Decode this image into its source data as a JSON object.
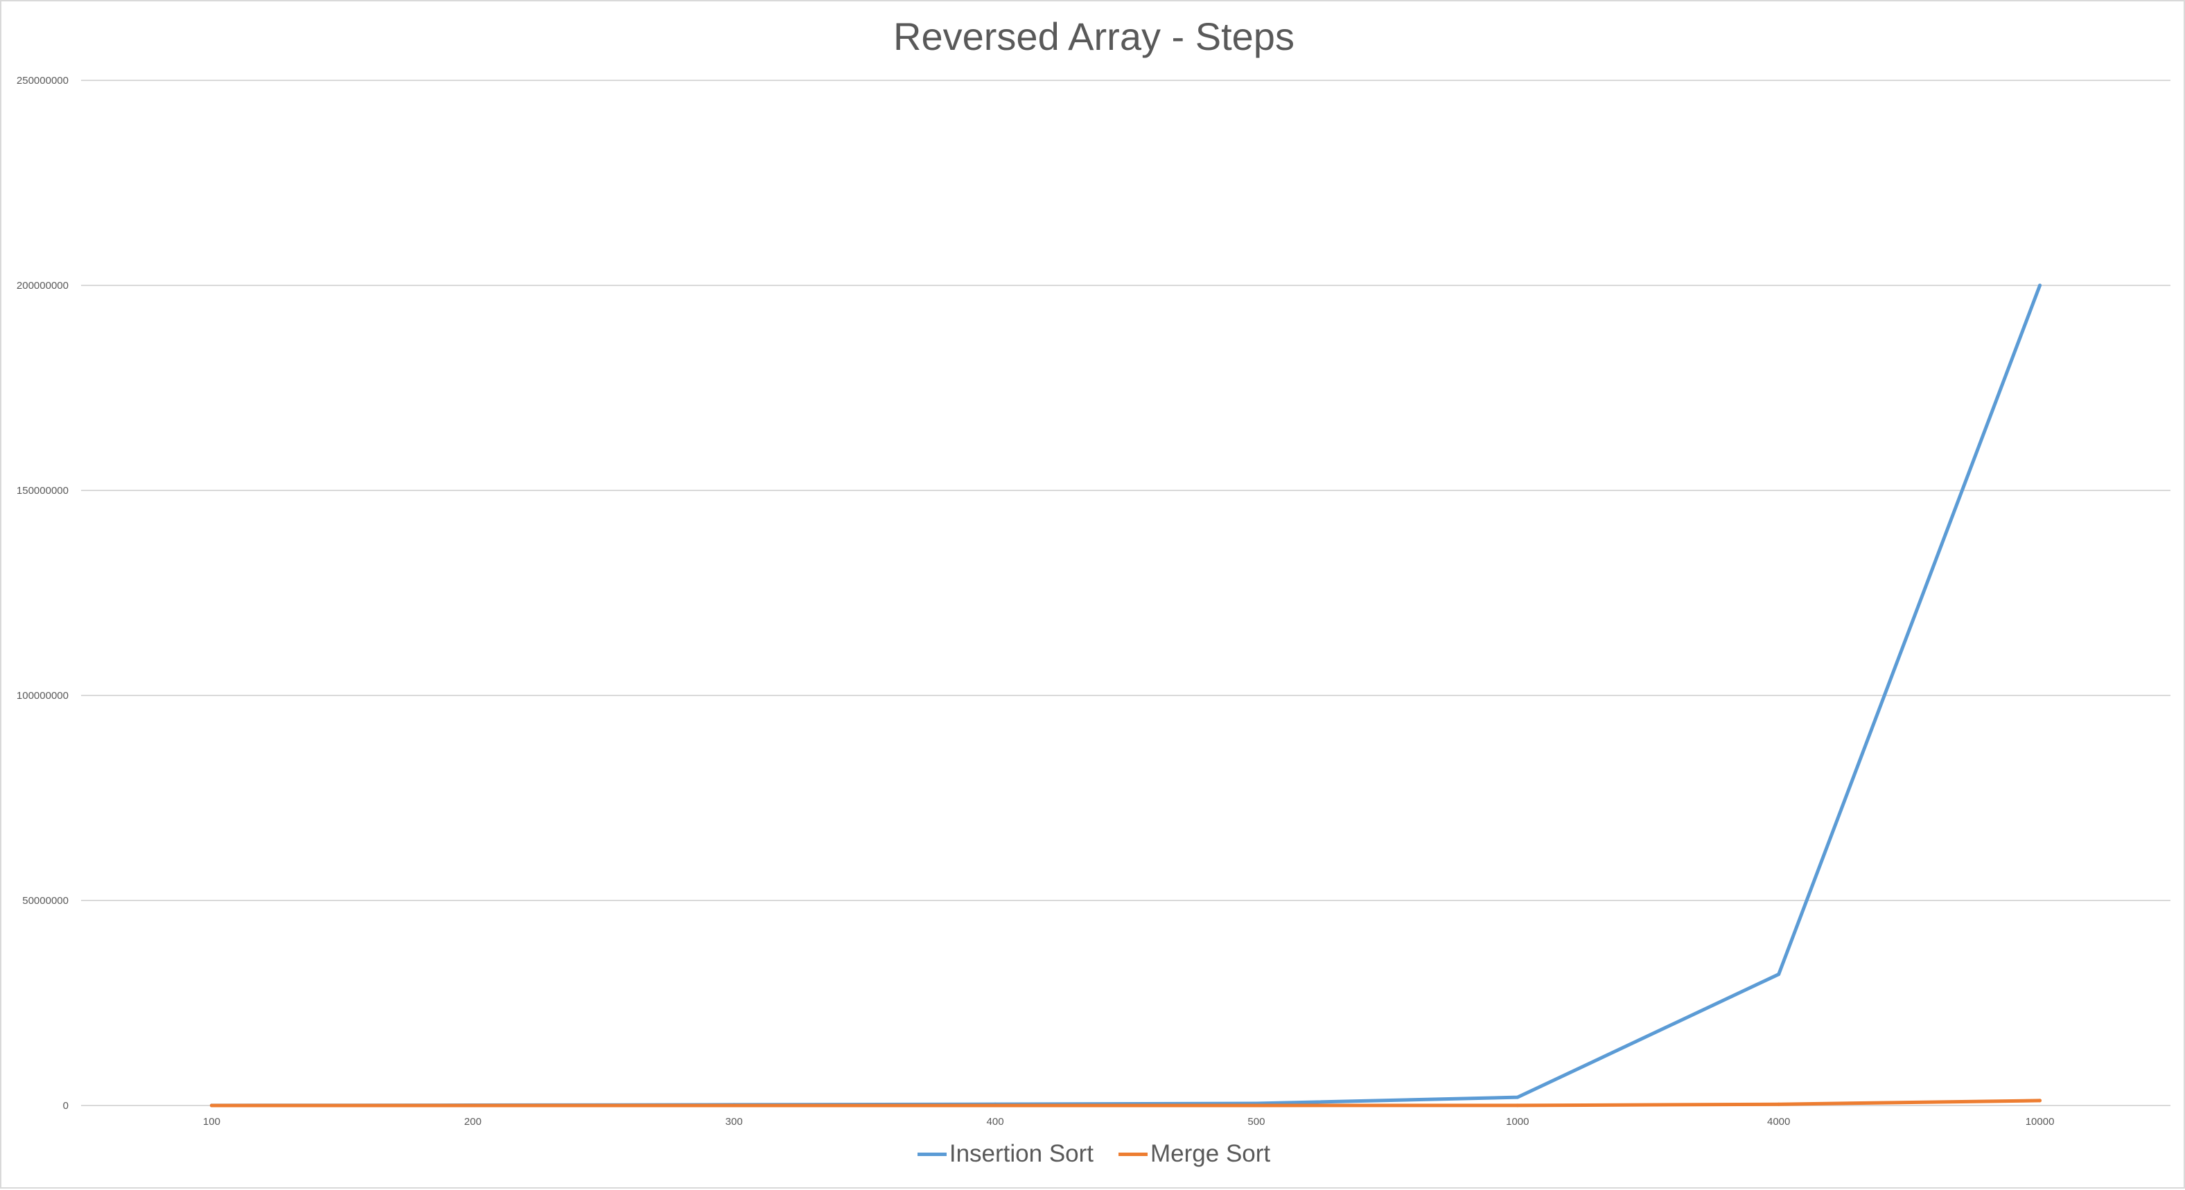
{
  "chart_data": {
    "type": "line",
    "title": "Reversed Array - Steps",
    "xlabel": "",
    "ylabel": "",
    "categories": [
      "100",
      "200",
      "300",
      "400",
      "500",
      "1000",
      "4000",
      "10000"
    ],
    "series": [
      {
        "name": "Insertion Sort",
        "color": "#5b9bd5",
        "values": [
          20000,
          80000,
          180000,
          320000,
          500000,
          2000000,
          32000000,
          200000000
        ]
      },
      {
        "name": "Merge Sort",
        "color": "#ed7d31",
        "values": [
          1300,
          3000,
          5000,
          7000,
          9000,
          20000,
          300000,
          1200000
        ]
      }
    ],
    "ylim": [
      0,
      250000000
    ],
    "yticks": [
      "0",
      "50000000",
      "100000000",
      "150000000",
      "200000000",
      "250000000"
    ],
    "grid": true,
    "legend_position": "bottom"
  }
}
